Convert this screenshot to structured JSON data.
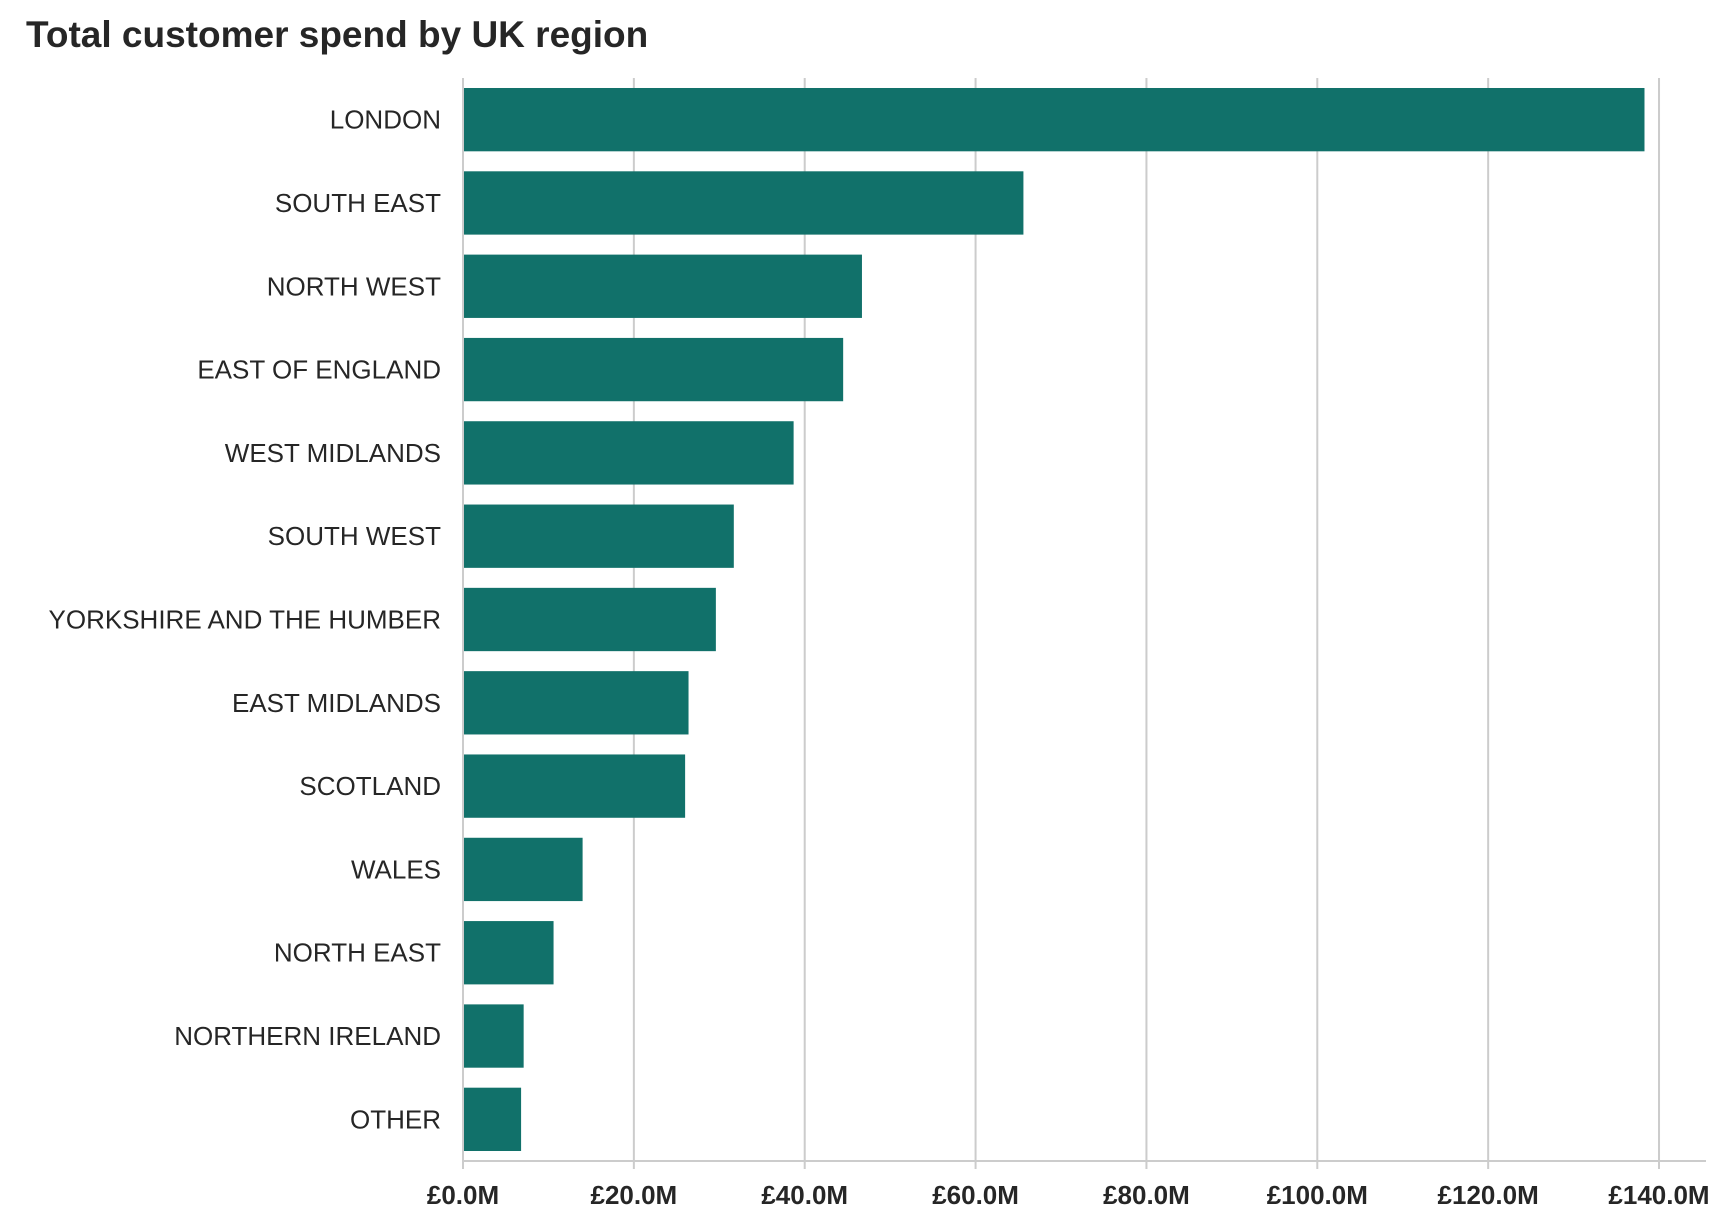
{
  "chart_data": {
    "type": "bar",
    "orientation": "horizontal",
    "title": "Total customer spend by UK region",
    "xlabel": "",
    "ylabel": "",
    "categories": [
      "LONDON",
      "SOUTH EAST",
      "NORTH WEST",
      "EAST OF ENGLAND",
      "WEST MIDLANDS",
      "SOUTH WEST",
      "YORKSHIRE AND THE HUMBER",
      "EAST MIDLANDS",
      "SCOTLAND",
      "WALES",
      "NORTH EAST",
      "NORTHERN IRELAND",
      "OTHER"
    ],
    "values": [
      138.3,
      65.6,
      46.7,
      44.5,
      38.7,
      31.7,
      29.6,
      26.4,
      26.0,
      14.0,
      10.6,
      7.1,
      6.8
    ],
    "value_unit": "£M",
    "xlim": [
      0,
      145.5
    ],
    "x_ticks": [
      0,
      20,
      40,
      60,
      80,
      100,
      120,
      140
    ],
    "x_tick_labels": [
      "£0.0M",
      "£20.0M",
      "£40.0M",
      "£60.0M",
      "£80.0M",
      "£100.0M",
      "£120.0M",
      "£140.0M"
    ],
    "grid": "vertical",
    "legend": "none",
    "bar_color": "#11716a",
    "grid_color": "#cccccc",
    "axis_color": "#cccccc"
  }
}
